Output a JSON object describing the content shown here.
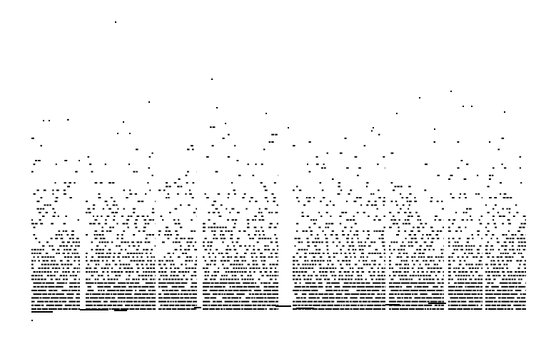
{
  "figure": {
    "background_color": "#ffffff",
    "mark_color": "#000000",
    "description_type": "dense-dot-raster"
  }
}
